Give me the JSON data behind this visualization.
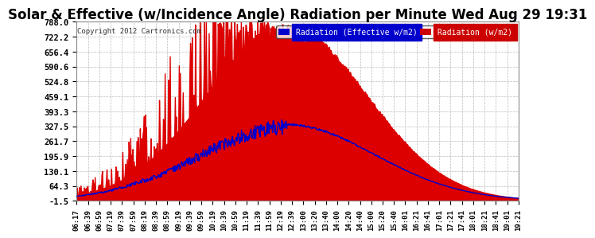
{
  "title": "Solar & Effective (w/Incidence Angle) Radiation per Minute Wed Aug 29 19:31",
  "copyright": "Copyright 2012 Cartronics.com",
  "legend_labels": [
    "Radiation (Effective w/m2)",
    "Radiation (w/m2)"
  ],
  "legend_colors": [
    "#0000cc",
    "#cc0000"
  ],
  "yticks": [
    -1.5,
    64.3,
    130.1,
    195.9,
    261.7,
    327.5,
    393.3,
    459.1,
    524.8,
    590.6,
    656.4,
    722.2,
    788.0
  ],
  "ylim": [
    -1.5,
    788.0
  ],
  "bg_color": "#ffffff",
  "plot_bg_color": "#ffffff",
  "grid_color": "#aaaaaa",
  "title_fontsize": 12,
  "x_labels": [
    "06:17",
    "06:39",
    "06:59",
    "07:19",
    "07:39",
    "07:59",
    "08:19",
    "08:39",
    "08:59",
    "09:19",
    "09:39",
    "09:59",
    "10:19",
    "10:39",
    "10:59",
    "11:19",
    "11:39",
    "11:59",
    "12:19",
    "12:39",
    "13:00",
    "13:20",
    "13:40",
    "14:00",
    "14:20",
    "14:40",
    "15:00",
    "15:20",
    "15:40",
    "16:01",
    "16:21",
    "16:41",
    "17:01",
    "17:21",
    "17:41",
    "18:01",
    "18:21",
    "18:41",
    "19:01",
    "19:21"
  ]
}
